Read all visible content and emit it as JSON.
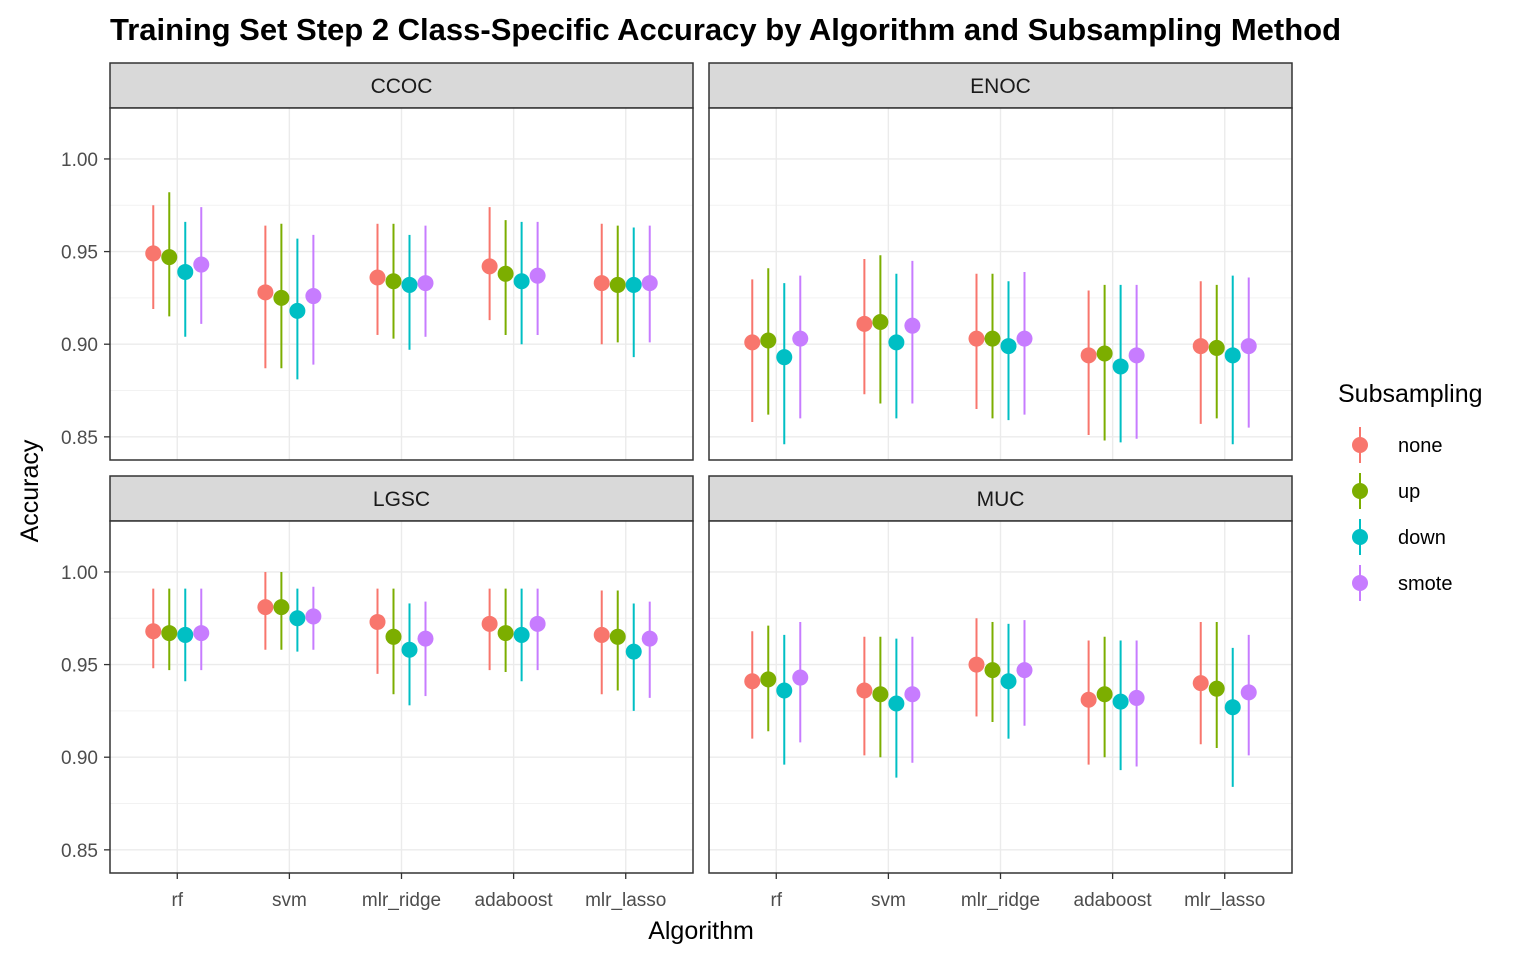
{
  "chart_data": {
    "type": "scatter",
    "subtype": "faceted point-range (errorbar) chart, 2x2 facets",
    "title": "Training Set Step 2 Class-Specific Accuracy by Algorithm and Subsampling Method",
    "xlabel": "Algorithm",
    "ylabel": "Accuracy",
    "ylim": [
      0.8375,
      1.0275
    ],
    "y_ticks": [
      "0.85",
      "0.90",
      "0.95",
      "1.00"
    ],
    "y_tick_values": [
      0.85,
      0.9,
      0.95,
      1.0
    ],
    "categories": [
      "rf",
      "svm",
      "mlr_ridge",
      "adaboost",
      "mlr_lasso"
    ],
    "grid": true,
    "legend": {
      "title": "Subsampling",
      "position": "right",
      "entries": [
        "none",
        "up",
        "down",
        "smote"
      ]
    },
    "colors": {
      "none": "#F8766D",
      "up": "#7CAE00",
      "down": "#00BFC4",
      "smote": "#C77CFF"
    },
    "facets": [
      {
        "name": "CCOC",
        "series": [
          {
            "name": "none",
            "values": [
              0.949,
              0.928,
              0.936,
              0.942,
              0.933
            ],
            "lower": [
              0.919,
              0.887,
              0.905,
              0.913,
              0.9
            ],
            "upper": [
              0.975,
              0.964,
              0.965,
              0.974,
              0.965
            ]
          },
          {
            "name": "up",
            "values": [
              0.947,
              0.925,
              0.934,
              0.938,
              0.932
            ],
            "lower": [
              0.915,
              0.887,
              0.903,
              0.905,
              0.901
            ],
            "upper": [
              0.982,
              0.965,
              0.965,
              0.967,
              0.964
            ]
          },
          {
            "name": "down",
            "values": [
              0.939,
              0.918,
              0.932,
              0.934,
              0.932
            ],
            "lower": [
              0.904,
              0.881,
              0.897,
              0.9,
              0.893
            ],
            "upper": [
              0.966,
              0.957,
              0.959,
              0.966,
              0.963
            ]
          },
          {
            "name": "smote",
            "values": [
              0.943,
              0.926,
              0.933,
              0.937,
              0.933
            ],
            "lower": [
              0.911,
              0.889,
              0.904,
              0.905,
              0.901
            ],
            "upper": [
              0.974,
              0.959,
              0.964,
              0.966,
              0.964
            ]
          }
        ]
      },
      {
        "name": "ENOC",
        "series": [
          {
            "name": "none",
            "values": [
              0.901,
              0.911,
              0.903,
              0.894,
              0.899
            ],
            "lower": [
              0.858,
              0.873,
              0.865,
              0.851,
              0.857
            ],
            "upper": [
              0.935,
              0.946,
              0.938,
              0.929,
              0.934
            ]
          },
          {
            "name": "up",
            "values": [
              0.902,
              0.912,
              0.903,
              0.895,
              0.898
            ],
            "lower": [
              0.862,
              0.868,
              0.86,
              0.848,
              0.86
            ],
            "upper": [
              0.941,
              0.948,
              0.938,
              0.932,
              0.932
            ]
          },
          {
            "name": "down",
            "values": [
              0.893,
              0.901,
              0.899,
              0.888,
              0.894
            ],
            "lower": [
              0.846,
              0.86,
              0.859,
              0.847,
              0.846
            ],
            "upper": [
              0.933,
              0.938,
              0.934,
              0.932,
              0.937
            ]
          },
          {
            "name": "smote",
            "values": [
              0.903,
              0.91,
              0.903,
              0.894,
              0.899
            ],
            "lower": [
              0.86,
              0.868,
              0.862,
              0.849,
              0.855
            ],
            "upper": [
              0.937,
              0.945,
              0.939,
              0.932,
              0.936
            ]
          }
        ]
      },
      {
        "name": "LGSC",
        "series": [
          {
            "name": "none",
            "values": [
              0.968,
              0.981,
              0.973,
              0.972,
              0.966
            ],
            "lower": [
              0.948,
              0.958,
              0.945,
              0.947,
              0.934
            ],
            "upper": [
              0.991,
              1.0,
              0.991,
              0.991,
              0.99
            ]
          },
          {
            "name": "up",
            "values": [
              0.967,
              0.981,
              0.965,
              0.967,
              0.965
            ],
            "lower": [
              0.947,
              0.958,
              0.934,
              0.946,
              0.936
            ],
            "upper": [
              0.991,
              1.0,
              0.991,
              0.991,
              0.99
            ]
          },
          {
            "name": "down",
            "values": [
              0.966,
              0.975,
              0.958,
              0.966,
              0.957
            ],
            "lower": [
              0.941,
              0.957,
              0.928,
              0.941,
              0.925
            ],
            "upper": [
              0.991,
              0.991,
              0.983,
              0.991,
              0.983
            ]
          },
          {
            "name": "smote",
            "values": [
              0.967,
              0.976,
              0.964,
              0.972,
              0.964
            ],
            "lower": [
              0.947,
              0.958,
              0.933,
              0.947,
              0.932
            ],
            "upper": [
              0.991,
              0.992,
              0.984,
              0.991,
              0.984
            ]
          }
        ]
      },
      {
        "name": "MUC",
        "series": [
          {
            "name": "none",
            "values": [
              0.941,
              0.936,
              0.95,
              0.931,
              0.94
            ],
            "lower": [
              0.91,
              0.901,
              0.922,
              0.896,
              0.907
            ],
            "upper": [
              0.968,
              0.965,
              0.975,
              0.963,
              0.973
            ]
          },
          {
            "name": "up",
            "values": [
              0.942,
              0.934,
              0.947,
              0.934,
              0.937
            ],
            "lower": [
              0.914,
              0.9,
              0.919,
              0.9,
              0.905
            ],
            "upper": [
              0.971,
              0.965,
              0.973,
              0.965,
              0.973
            ]
          },
          {
            "name": "down",
            "values": [
              0.936,
              0.929,
              0.941,
              0.93,
              0.927
            ],
            "lower": [
              0.896,
              0.889,
              0.91,
              0.893,
              0.884
            ],
            "upper": [
              0.966,
              0.964,
              0.972,
              0.963,
              0.959
            ]
          },
          {
            "name": "smote",
            "values": [
              0.943,
              0.934,
              0.947,
              0.932,
              0.935
            ],
            "lower": [
              0.908,
              0.897,
              0.917,
              0.895,
              0.901
            ],
            "upper": [
              0.973,
              0.965,
              0.974,
              0.963,
              0.966
            ]
          }
        ]
      }
    ]
  }
}
